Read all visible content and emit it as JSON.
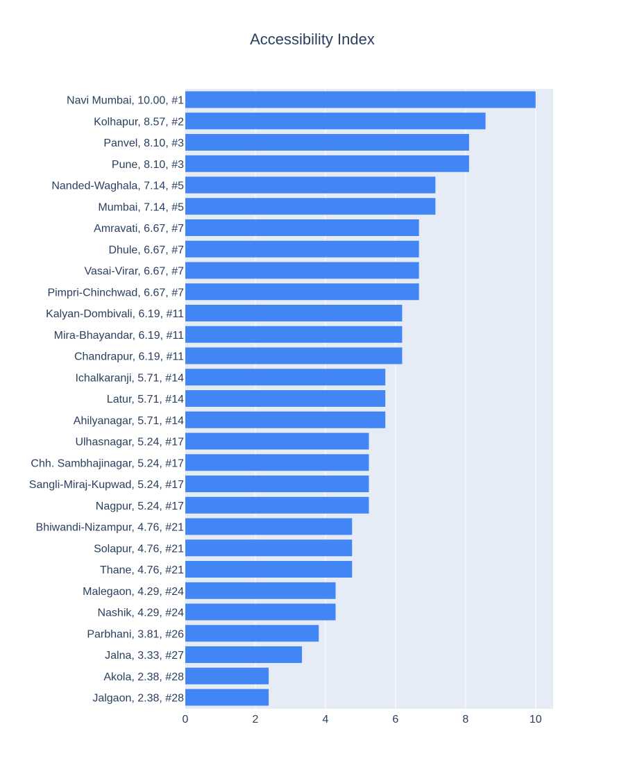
{
  "chart_data": {
    "type": "bar",
    "orientation": "horizontal",
    "title": "Accessibility Index",
    "xlabel": "",
    "ylabel": "",
    "xlim": [
      0,
      10.5
    ],
    "x_ticks": [
      "0",
      "2",
      "4",
      "6",
      "8",
      "10"
    ],
    "x_tick_values": [
      0,
      2,
      4,
      6,
      8,
      10
    ],
    "grid": true,
    "colors": {
      "bar": "#4285f4",
      "plot_bg": "#e5ecf6",
      "grid": "#ffffff",
      "text": "#2a3f5f"
    },
    "categories": [
      "Navi Mumbai, 10.00, #1",
      "Kolhapur, 8.57, #2",
      "Panvel, 8.10, #3",
      "Pune, 8.10, #3",
      "Nanded-Waghala, 7.14, #5",
      "Mumbai, 7.14, #5",
      "Amravati, 6.67, #7",
      "Dhule, 6.67, #7",
      "Vasai-Virar, 6.67, #7",
      "Pimpri-Chinchwad, 6.67, #7",
      "Kalyan-Dombivali, 6.19, #11",
      "Mira-Bhayandar, 6.19, #11",
      "Chandrapur, 6.19, #11",
      "Ichalkaranji, 5.71, #14",
      "Latur, 5.71, #14",
      "Ahilyanagar, 5.71, #14",
      "Ulhasnagar, 5.24, #17",
      "Chh. Sambhajinagar, 5.24, #17",
      "Sangli-Miraj-Kupwad, 5.24, #17",
      "Nagpur, 5.24, #17",
      "Bhiwandi-Nizampur, 4.76, #21",
      "Solapur, 4.76, #21",
      "Thane, 4.76, #21",
      "Malegaon, 4.29, #24",
      "Nashik, 4.29, #24",
      "Parbhani, 3.81, #26",
      "Jalna, 3.33, #27",
      "Akola, 2.38, #28",
      "Jalgaon, 2.38, #28"
    ],
    "values": [
      10.0,
      8.57,
      8.1,
      8.1,
      7.14,
      7.14,
      6.67,
      6.67,
      6.67,
      6.67,
      6.19,
      6.19,
      6.19,
      5.71,
      5.71,
      5.71,
      5.24,
      5.24,
      5.24,
      5.24,
      4.76,
      4.76,
      4.76,
      4.29,
      4.29,
      3.81,
      3.33,
      2.38,
      2.38
    ]
  }
}
